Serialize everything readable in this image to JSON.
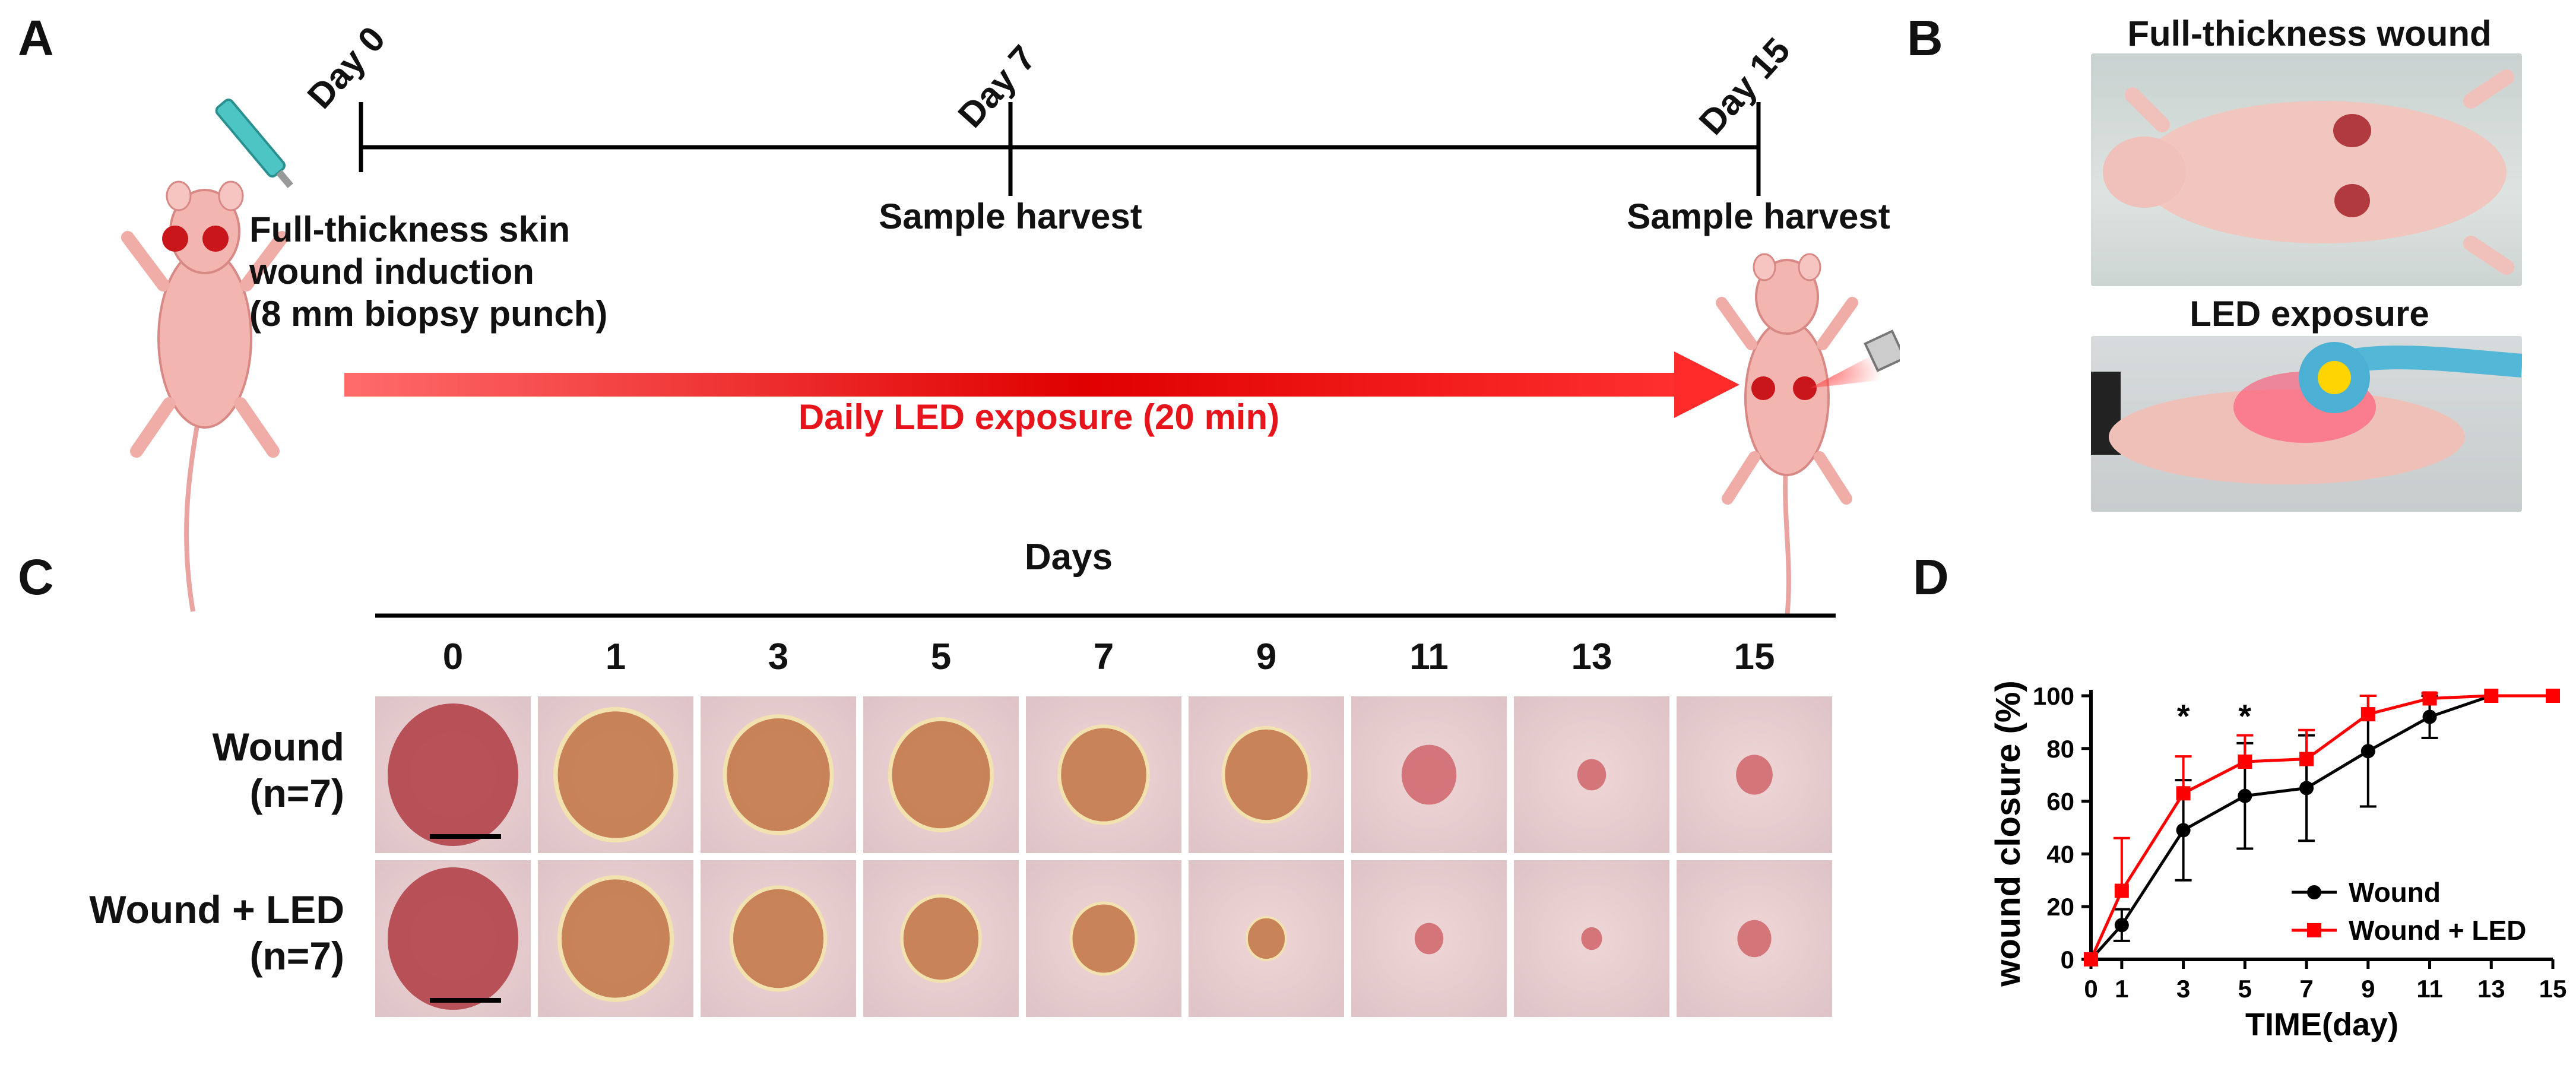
{
  "panels": {
    "a": "A",
    "b": "B",
    "c": "C",
    "d": "D"
  },
  "timeline": {
    "day0": "Day 0",
    "day7": "Day 7",
    "day15": "Day 15",
    "induction": [
      "Full-thickness skin",
      "wound induction",
      "(8 mm biopsy punch)"
    ],
    "harvest7": "Sample harvest",
    "harvest15": "Sample harvest",
    "exposure": "Daily LED exposure (20 min)"
  },
  "panel_b": {
    "top_title": "Full-thickness wound",
    "bottom_title": "LED exposure"
  },
  "panel_c": {
    "days_title": "Days",
    "days": [
      "0",
      "1",
      "3",
      "5",
      "7",
      "9",
      "11",
      "13",
      "15"
    ],
    "rows": [
      {
        "name": "Wound",
        "n": "(n=7)",
        "wound_size": [
          1.0,
          0.92,
          0.82,
          0.78,
          0.68,
          0.66,
          0.42,
          0.22,
          0.28
        ]
      },
      {
        "name": "Wound + LED",
        "n": "(n=7)",
        "wound_size": [
          1.0,
          0.86,
          0.72,
          0.6,
          0.5,
          0.3,
          0.22,
          0.16,
          0.26
        ]
      }
    ]
  },
  "chart_data": {
    "type": "line",
    "xlabel": "TIME(day)",
    "ylabel": "wound closure (%)",
    "x": [
      0,
      1,
      3,
      5,
      7,
      9,
      11,
      13,
      15
    ],
    "xticks": [
      "0",
      "1",
      "3",
      "5",
      "7",
      "9",
      "11",
      "13",
      "15"
    ],
    "yticks": [
      "0",
      "20",
      "40",
      "60",
      "80",
      "100"
    ],
    "xlim": [
      0,
      15
    ],
    "ylim": [
      0,
      100
    ],
    "series": [
      {
        "name": "Wound",
        "color": "#000000",
        "marker": "circle",
        "values": [
          0,
          13,
          49,
          62,
          65,
          79,
          92,
          100,
          100
        ],
        "errors": [
          0,
          6,
          19,
          20,
          20,
          21,
          8,
          0,
          0
        ]
      },
      {
        "name": "Wound + LED",
        "color": "#ff0000",
        "marker": "square",
        "values": [
          0,
          26,
          63,
          75,
          76,
          93,
          99,
          100,
          100
        ],
        "errors": [
          0,
          20,
          14,
          10,
          11,
          7,
          2,
          0,
          0
        ]
      }
    ],
    "annotations": [
      {
        "x": 3,
        "text": "*"
      },
      {
        "x": 5,
        "text": "*"
      }
    ],
    "legend": "bottom-right"
  }
}
